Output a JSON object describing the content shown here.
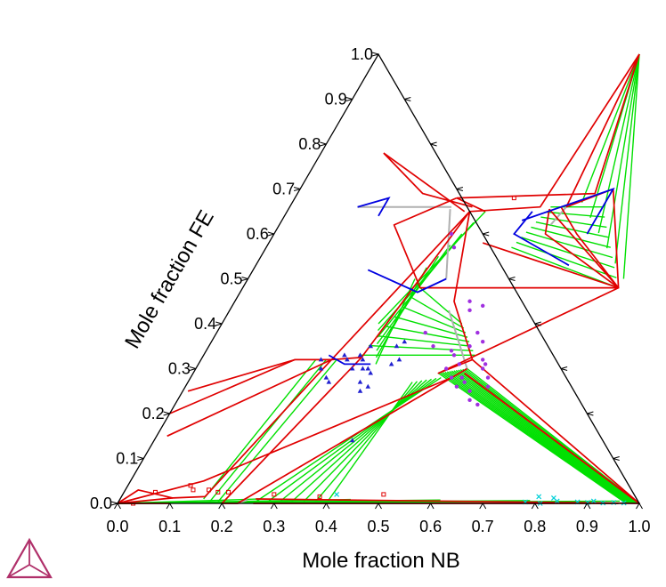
{
  "chart_data": {
    "type": "scatter",
    "subtype": "ternary-phase-diagram",
    "title": "",
    "xlabel": "Mole fraction NB",
    "ylabel": "Mole fraction FE",
    "xlim": [
      0,
      1
    ],
    "ylim": [
      0,
      1
    ],
    "grid": false,
    "legend": "none",
    "x_ticks": [
      "0.0",
      "0.1",
      "0.2",
      "0.3",
      "0.4",
      "0.5",
      "0.6",
      "0.7",
      "0.8",
      "0.9",
      "1.0"
    ],
    "y_ticks": [
      "0.0",
      "0.1",
      "0.2",
      "0.3",
      "0.4",
      "0.5",
      "0.6",
      "0.7",
      "0.8",
      "0.9",
      "1.0"
    ],
    "colors": {
      "frame": "#000000",
      "phase_boundary": "#e00000",
      "tie_line": "#00e000",
      "liquidus_boundary": "#0000e0",
      "invariant_line": "#b0b0b0",
      "points_violet": "#a030e0",
      "points_blue": "#2020d0",
      "points_red": "#e00000",
      "points_cyan": "#00d0d8",
      "logo": "#b0306a"
    },
    "boundary_polylines": [
      [
        [
          0.35,
          0.65
        ],
        [
          0.25,
          0.32
        ],
        [
          0.18,
          0.32
        ],
        [
          0.01,
          0.25
        ]
      ],
      [
        [
          0.35,
          0.65
        ],
        [
          0.305,
          0.325
        ],
        [
          0.25,
          0.32
        ]
      ],
      [
        [
          0.35,
          0.65
        ],
        [
          0.48,
          0.66
        ],
        [
          0.5,
          1.0
        ]
      ],
      [
        [
          0.35,
          0.65
        ],
        [
          0.42,
          0.45
        ],
        [
          0.52,
          0.32
        ]
      ],
      [
        [
          0.12,
          0.78
        ],
        [
          0.34,
          0.65
        ]
      ],
      [
        [
          0.12,
          0.78
        ],
        [
          0.24,
          0.69
        ],
        [
          0.35,
          0.66
        ]
      ],
      [
        [
          0.5,
          1.0
        ],
        [
          0.53,
          0.66
        ]
      ],
      [
        [
          0.5,
          1.0
        ],
        [
          0.57,
          0.69
        ],
        [
          0.31,
          0.68
        ]
      ],
      [
        [
          0.53,
          0.66
        ],
        [
          0.6,
          0.7
        ],
        [
          0.72,
          0.48
        ]
      ],
      [
        [
          0.5,
          0.655
        ],
        [
          0.72,
          0.48
        ],
        [
          0.58,
          0.6
        ],
        [
          0.52,
          0.66
        ]
      ],
      [
        [
          0.5,
          0.655
        ],
        [
          0.52,
          0.6
        ],
        [
          0.72,
          0.48
        ],
        [
          0.34,
          0.48
        ],
        [
          0.22,
          0.62
        ],
        [
          0.31,
          0.68
        ]
      ],
      [
        [
          0.38,
          0.65
        ],
        [
          0.31,
          0.68
        ]
      ],
      [
        [
          0.41,
          0.58
        ],
        [
          0.72,
          0.48
        ],
        [
          0.47,
          0.29
        ],
        [
          0.52,
          0.32
        ]
      ],
      [
        [
          0.52,
          0.32
        ],
        [
          1.0,
          0.0
        ],
        [
          0.52,
          0.29
        ]
      ],
      [
        [
          0.52,
          0.29
        ],
        [
          1.0,
          0.0
        ]
      ],
      [
        [
          0.25,
          0.32
        ],
        [
          0.16,
          0.015
        ],
        [
          0.1,
          0.012
        ],
        [
          0.0,
          0.0
        ]
      ],
      [
        [
          0.305,
          0.325
        ],
        [
          0.2,
          0.0
        ]
      ],
      [
        [
          0.52,
          0.3
        ],
        [
          0.23,
          0.0
        ],
        [
          0.2,
          0.0
        ]
      ],
      [
        [
          0.5,
          0.28
        ],
        [
          0.14,
          0.05
        ],
        [
          0.0,
          0.0
        ]
      ],
      [
        [
          0.25,
          0.32
        ],
        [
          0.02,
          0.15
        ]
      ],
      [
        [
          0.18,
          0.32
        ],
        [
          0.0,
          0.2
        ]
      ],
      [
        [
          0.26,
          0.01
        ],
        [
          1.0,
          0.0
        ]
      ],
      [
        [
          0.26,
          0.0
        ],
        [
          0.96,
          0.0
        ]
      ],
      [
        [
          0.0,
          0.0
        ],
        [
          0.025,
          0.03
        ],
        [
          0.1,
          0.012
        ]
      ],
      [
        [
          0.0,
          0.0
        ],
        [
          0.1,
          0.0
        ]
      ]
    ],
    "blue_boundaries": [
      [
        [
          0.13,
          0.66
        ],
        [
          0.18,
          0.68
        ],
        [
          0.18,
          0.64
        ]
      ],
      [
        [
          0.46,
          0.63
        ],
        [
          0.6,
          0.7
        ],
        [
          0.6,
          0.6
        ]
      ],
      [
        [
          0.47,
          0.65
        ],
        [
          0.46,
          0.6
        ],
        [
          0.6,
          0.53
        ]
      ],
      [
        [
          0.38,
          0.5
        ],
        [
          0.34,
          0.47
        ],
        [
          0.22,
          0.52
        ]
      ],
      [
        [
          0.24,
          0.33
        ],
        [
          0.28,
          0.31
        ],
        [
          0.33,
          0.31
        ]
      ]
    ],
    "gray_boundaries": [
      [
        [
          0.13,
          0.66
        ],
        [
          0.31,
          0.66
        ]
      ],
      [
        [
          0.53,
          0.66
        ],
        [
          0.52,
          0.62
        ]
      ],
      [
        [
          0.31,
          0.655
        ],
        [
          0.38,
          0.5
        ]
      ],
      [
        [
          0.42,
          0.43
        ],
        [
          0.52,
          0.3
        ]
      ],
      [
        [
          0.23,
          0.0
        ],
        [
          0.245,
          0.008
        ]
      ]
    ],
    "tie_line_fans": [
      {
        "a_from": [
          0.5,
          1.0
        ],
        "a_to": [
          0.5,
          1.0
        ],
        "b_from": [
          0.555,
          0.67
        ],
        "b_to": [
          0.72,
          0.5
        ],
        "count": 6
      },
      {
        "a_from": [
          0.5,
          0.66
        ],
        "a_to": [
          0.47,
          0.57
        ],
        "b_from": [
          0.6,
          0.66
        ],
        "b_to": [
          0.72,
          0.48
        ],
        "count": 9
      },
      {
        "a_from": [
          0.38,
          0.65
        ],
        "a_to": [
          0.32,
          0.5
        ],
        "b_from": [
          0.3,
          0.4
        ],
        "b_to": [
          0.34,
          0.31
        ],
        "count": 7
      },
      {
        "a_from": [
          0.34,
          0.48
        ],
        "a_to": [
          0.3,
          0.33
        ],
        "b_from": [
          0.46,
          0.4
        ],
        "b_to": [
          0.52,
          0.33
        ],
        "count": 8
      },
      {
        "a_from": [
          0.52,
          0.3
        ],
        "a_to": [
          0.47,
          0.29
        ],
        "b_from": [
          1.0,
          0.0
        ],
        "b_to": [
          0.975,
          0.0
        ],
        "count": 14
      },
      {
        "a_from": [
          0.48,
          0.28
        ],
        "a_to": [
          0.43,
          0.27
        ],
        "b_from": [
          0.26,
          0.0
        ],
        "b_to": [
          0.4,
          0.0
        ],
        "count": 7
      },
      {
        "a_from": [
          0.26,
          0.32
        ],
        "a_to": [
          0.22,
          0.32
        ],
        "b_from": [
          0.19,
          0.0
        ],
        "b_to": [
          0.16,
          0.01
        ],
        "count": 3
      },
      {
        "a_from": [
          0.0,
          0.0
        ],
        "a_to": [
          0.0,
          0.0
        ],
        "b_from": [
          0.27,
          0.01
        ],
        "b_to": [
          0.96,
          0.005
        ],
        "count": 5
      }
    ],
    "experimental_points": [
      {
        "series": "violet",
        "marker": "circle",
        "points": [
          [
            0.34,
            0.6
          ],
          [
            0.36,
            0.57
          ],
          [
            0.45,
            0.45
          ],
          [
            0.48,
            0.44
          ],
          [
            0.46,
            0.43
          ],
          [
            0.5,
            0.38
          ],
          [
            0.52,
            0.36
          ],
          [
            0.5,
            0.35
          ],
          [
            0.47,
            0.34
          ],
          [
            0.48,
            0.33
          ],
          [
            0.5,
            0.31
          ],
          [
            0.55,
            0.31
          ],
          [
            0.55,
            0.3
          ],
          [
            0.52,
            0.28
          ],
          [
            0.57,
            0.28
          ],
          [
            0.53,
            0.27
          ],
          [
            0.58,
            0.26
          ],
          [
            0.56,
            0.23
          ],
          [
            0.58,
            0.22
          ],
          [
            0.5,
            0.28
          ],
          [
            0.52,
            0.26
          ],
          [
            0.48,
            0.3
          ],
          [
            0.4,
            0.38
          ],
          [
            0.43,
            0.35
          ],
          [
            0.55,
            0.25
          ],
          [
            0.54,
            0.32
          ]
        ]
      },
      {
        "series": "blue",
        "marker": "triangle",
        "points": [
          [
            0.23,
            0.32
          ],
          [
            0.24,
            0.3
          ],
          [
            0.27,
            0.27
          ],
          [
            0.26,
            0.28
          ],
          [
            0.28,
            0.32
          ],
          [
            0.3,
            0.33
          ],
          [
            0.31,
            0.32
          ],
          [
            0.32,
            0.3
          ],
          [
            0.33,
            0.3
          ],
          [
            0.33,
            0.27
          ],
          [
            0.34,
            0.29
          ],
          [
            0.36,
            0.35
          ],
          [
            0.37,
            0.36
          ],
          [
            0.37,
            0.31
          ],
          [
            0.38,
            0.32
          ],
          [
            0.31,
            0.35
          ],
          [
            0.3,
            0.3
          ],
          [
            0.27,
            0.33
          ],
          [
            0.35,
            0.26
          ],
          [
            0.34,
            0.25
          ],
          [
            0.38,
            0.14
          ]
        ]
      },
      {
        "series": "red",
        "marker": "square",
        "points": [
          [
            0.13,
            0.03
          ],
          [
            0.16,
            0.03
          ],
          [
            0.18,
            0.025
          ],
          [
            0.2,
            0.025
          ],
          [
            0.29,
            0.02
          ],
          [
            0.38,
            0.015
          ],
          [
            0.5,
            0.02
          ],
          [
            0.06,
            0.025
          ],
          [
            0.12,
            0.04
          ],
          [
            0.03,
            0.0
          ],
          [
            0.42,
            0.68
          ]
        ]
      },
      {
        "series": "cyan",
        "marker": "cross",
        "points": [
          [
            0.41,
            0.02
          ],
          [
            0.81,
            0.0
          ],
          [
            0.83,
            0.012
          ],
          [
            0.8,
            0.015
          ],
          [
            0.84,
            0.005
          ],
          [
            0.88,
            0.003
          ],
          [
            0.9,
            0.002
          ],
          [
            0.93,
            0.001
          ],
          [
            0.95,
            0.002
          ],
          [
            0.97,
            0.001
          ],
          [
            0.91,
            0.005
          ],
          [
            0.78,
            0.003
          ]
        ]
      }
    ]
  }
}
